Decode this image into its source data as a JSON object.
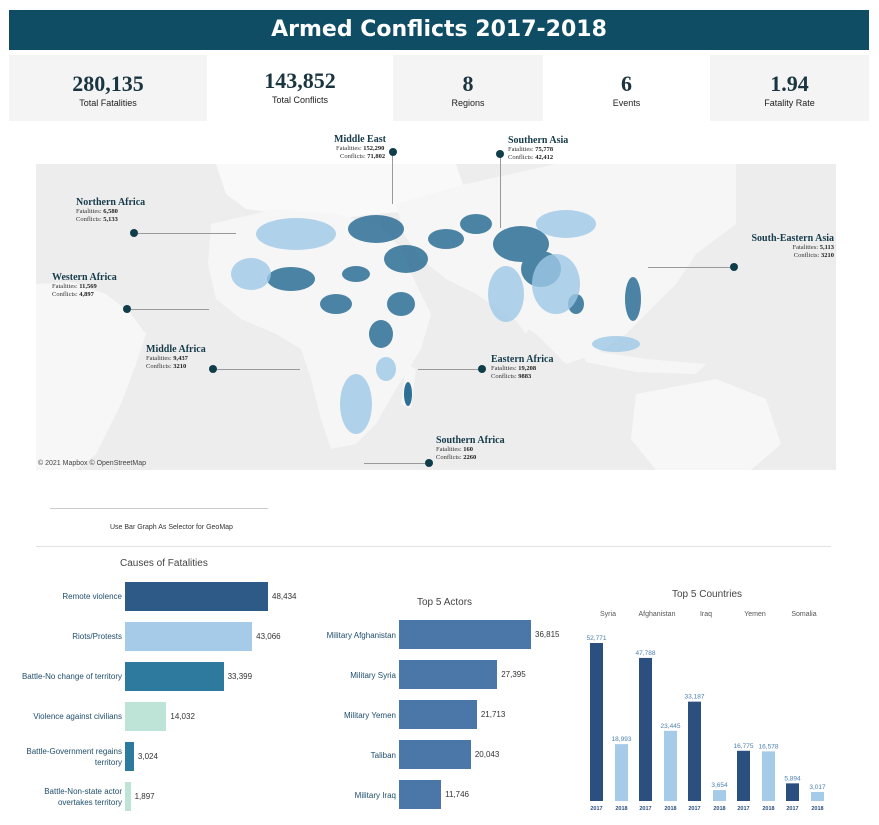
{
  "title": "Armed Conflicts 2017-2018",
  "kpis": [
    {
      "value": "280,135",
      "label": "Total Fatalities"
    },
    {
      "value": "143,852",
      "label": "Total Conflicts"
    },
    {
      "value": "8",
      "label": "Regions"
    },
    {
      "value": "6",
      "label": "Events"
    },
    {
      "value": "1.94",
      "label": "Fatality Rate"
    }
  ],
  "map": {
    "attribution": "© 2021 Mapbox  © OpenStreetMap",
    "fatalities_prefix": "Fatalities:",
    "conflicts_prefix": "Conflicts:",
    "regions": [
      {
        "name": "Middle East",
        "fatalities": "152,290",
        "conflicts": "71,802"
      },
      {
        "name": "Southern Asia",
        "fatalities": "75,778",
        "conflicts": "42,412"
      },
      {
        "name": "Northern Africa",
        "fatalities": "6,580",
        "conflicts": "5,133"
      },
      {
        "name": "South-Eastern Asia",
        "fatalities": "5,113",
        "conflicts": "3210"
      },
      {
        "name": "Western Africa",
        "fatalities": "11,569",
        "conflicts": "4,897"
      },
      {
        "name": "Middle Africa",
        "fatalities": "9,437",
        "conflicts": "3210"
      },
      {
        "name": "Eastern Africa",
        "fatalities": "19,208",
        "conflicts": "9883"
      },
      {
        "name": "Southern Africa",
        "fatalities": "160",
        "conflicts": "2260"
      }
    ]
  },
  "selector_hint": "Use Bar Graph As Selector for GeoMap",
  "causes": {
    "title": "Causes of Fatalities",
    "items": [
      {
        "label": "Remote violence",
        "value": 48434,
        "display": "48,434",
        "color": "#2e5a88"
      },
      {
        "label": "Riots/Protests",
        "value": 43066,
        "display": "43,066",
        "color": "#a6cbe8"
      },
      {
        "label": "Battle-No change of territory",
        "value": 33399,
        "display": "33,399",
        "color": "#2e7a9e"
      },
      {
        "label": "Violence against civilians",
        "value": 14032,
        "display": "14,032",
        "color": "#bde4d6"
      },
      {
        "label": "Battle-Government regains territory",
        "value": 3024,
        "display": "3,024",
        "color": "#2e7a9e"
      },
      {
        "label": "Battle-Non-state actor overtakes territory",
        "value": 1897,
        "display": "1,897",
        "color": "#bde4d6"
      }
    ]
  },
  "actors": {
    "title": "Top 5 Actors",
    "color": "#4b77a8",
    "items": [
      {
        "label": "Military Afghanistan",
        "value": 36815,
        "display": "36,815"
      },
      {
        "label": "Military Syria",
        "value": 27395,
        "display": "27,395"
      },
      {
        "label": "Military Yemen",
        "value": 21713,
        "display": "21,713"
      },
      {
        "label": "Taliban",
        "value": 20043,
        "display": "20,043"
      },
      {
        "label": "Military Iraq",
        "value": 11746,
        "display": "11,746"
      }
    ]
  },
  "chart_data": {
    "type": "bar",
    "title": "Top 5 Countries",
    "categories": [
      "Syria",
      "Afghanistan",
      "Iraq",
      "Yemen",
      "Somalia"
    ],
    "series": [
      {
        "name": "2017",
        "values": [
          52771,
          47788,
          33187,
          16775,
          5894
        ],
        "labels": [
          "52,771",
          "47,788",
          "33,187",
          "16,775",
          "5,894"
        ],
        "color": "#2b4f7e"
      },
      {
        "name": "2018",
        "values": [
          18993,
          23445,
          3654,
          16578,
          3017
        ],
        "labels": [
          "18,993",
          "23,445",
          "3,654",
          "16,578",
          "3,017"
        ],
        "color": "#a6cbe8"
      }
    ]
  }
}
